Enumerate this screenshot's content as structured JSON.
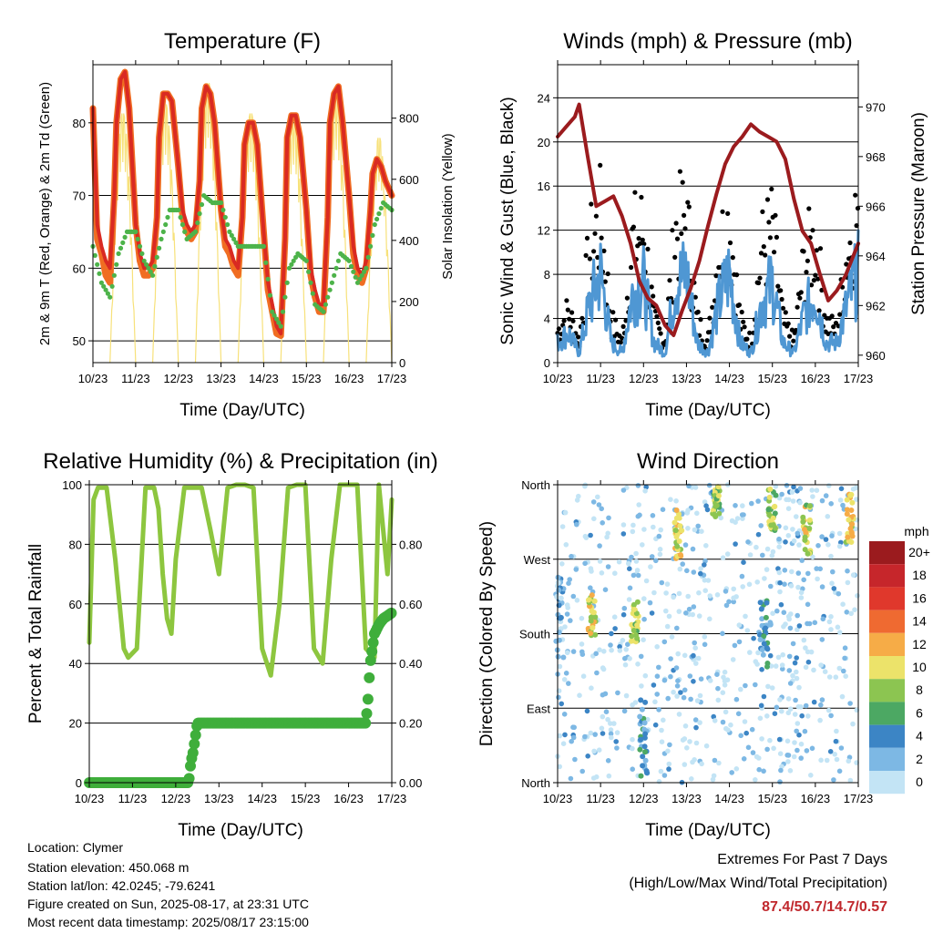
{
  "colors": {
    "temp9m": "#d92a22",
    "temp2m": "#f06d22",
    "dewpoint": "#4db34a",
    "solar": "#f7e17a",
    "sonic": "#4f97d3",
    "gust": "#000000",
    "pressure": "#9b1b1e",
    "rh": "#8dc63f",
    "precip": "#3fae3b",
    "highlight": "#c0282d"
  },
  "footer": {
    "location": "Location: Clymer",
    "elevation": "Station elevation: 450.068 m",
    "latlon": "Station lat/lon: 42.0245; -79.6241",
    "created": "Figure created on Sun, 2025-08-17, at 23:31 UTC",
    "recent": "Most recent data timestamp: 2025/08/17 23:15:00",
    "extremes_title": "Extremes For Past 7 Days",
    "extremes_sub": "(High/Low/Max Wind/Total Precipitation)",
    "extremes_values": "87.4/50.7/14.7/0.57"
  },
  "chart_data": [
    {
      "type": "line",
      "title": "Temperature (F)",
      "xlabel": "Time (Day/UTC)",
      "ylabel": "2m & 9m T (Red, Orange) & 2m Td (Green)",
      "ylabel_right": "Solar Insolation (Yellow)",
      "xticks": [
        "10/23",
        "11/23",
        "12/23",
        "13/23",
        "14/23",
        "15/23",
        "16/23",
        "17/23"
      ],
      "ylim": [
        47,
        88
      ],
      "yticks": [
        50,
        60,
        70,
        80
      ],
      "ylim_right": [
        0,
        975
      ],
      "yticks_right": [
        0,
        200,
        400,
        600,
        800
      ],
      "grid": "horizontal",
      "series": [
        {
          "name": "9m T",
          "axis": "left",
          "x": [
            0,
            0.1,
            0.2,
            0.3,
            0.4,
            0.5,
            0.55,
            0.65,
            0.75,
            0.85,
            1,
            1.1,
            1.2,
            1.3,
            1.4,
            1.5,
            1.55,
            1.65,
            1.75,
            1.85,
            2,
            2.1,
            2.2,
            2.3,
            2.4,
            2.5,
            2.55,
            2.65,
            2.75,
            2.85,
            3,
            3.1,
            3.2,
            3.3,
            3.4,
            3.5,
            3.55,
            3.65,
            3.75,
            3.85,
            4,
            4.1,
            4.2,
            4.3,
            4.4,
            4.5,
            4.55,
            4.65,
            4.75,
            4.85,
            5,
            5.1,
            5.2,
            5.3,
            5.4,
            5.5,
            5.55,
            5.65,
            5.75,
            5.85,
            6,
            6.1,
            6.2,
            6.3,
            6.4,
            6.5,
            6.55,
            6.65,
            6.75,
            6.85,
            7
          ],
          "values": [
            82,
            66,
            63,
            61,
            60,
            70,
            80,
            86,
            87,
            82,
            66,
            62,
            60,
            60,
            61,
            67,
            78,
            84,
            84,
            83,
            74,
            68,
            66,
            65,
            66,
            72,
            82,
            85,
            84,
            80,
            68,
            64,
            63,
            61,
            60,
            67,
            77,
            80,
            80,
            77,
            65,
            58,
            55,
            52,
            51,
            64,
            78,
            81,
            81,
            78,
            68,
            60,
            57,
            55,
            55,
            67,
            80,
            84,
            85,
            80,
            70,
            63,
            60,
            59,
            61,
            68,
            73,
            75,
            74,
            72,
            70
          ]
        },
        {
          "name": "2m T",
          "axis": "left",
          "x": [
            0,
            0.1,
            0.2,
            0.3,
            0.4,
            0.5,
            0.55,
            0.65,
            0.75,
            0.85,
            1,
            1.1,
            1.2,
            1.3,
            1.4,
            1.5,
            1.55,
            1.65,
            1.75,
            1.85,
            2,
            2.1,
            2.2,
            2.3,
            2.4,
            2.5,
            2.55,
            2.65,
            2.75,
            2.85,
            3,
            3.1,
            3.2,
            3.3,
            3.4,
            3.5,
            3.55,
            3.65,
            3.75,
            3.85,
            4,
            4.1,
            4.2,
            4.3,
            4.4,
            4.5,
            4.55,
            4.65,
            4.75,
            4.85,
            5,
            5.1,
            5.2,
            5.3,
            5.4,
            5.5,
            5.55,
            5.65,
            5.75,
            5.85,
            6,
            6.1,
            6.2,
            6.3,
            6.4,
            6.5,
            6.55,
            6.65,
            6.75,
            6.85,
            7
          ],
          "values": [
            82,
            64,
            62,
            59,
            58,
            70,
            80,
            86,
            87,
            82,
            66,
            61,
            59,
            59,
            60,
            67,
            78,
            84,
            84,
            83,
            74,
            67,
            65,
            64,
            65,
            72,
            82,
            85,
            84,
            80,
            68,
            63,
            62,
            60,
            59,
            67,
            77,
            80,
            80,
            77,
            65,
            57,
            54,
            51,
            50.7,
            64,
            78,
            81,
            81,
            78,
            68,
            59,
            56,
            54,
            54,
            67,
            80,
            84,
            85,
            80,
            70,
            62,
            59,
            58,
            60,
            68,
            73,
            75,
            74,
            72,
            70
          ]
        },
        {
          "name": "2m Td",
          "axis": "left",
          "x": [
            0,
            0.2,
            0.4,
            0.6,
            0.8,
            1,
            1.2,
            1.4,
            1.6,
            1.8,
            2,
            2.2,
            2.4,
            2.6,
            2.8,
            3,
            3.2,
            3.4,
            3.6,
            3.8,
            4,
            4.2,
            4.4,
            4.6,
            4.8,
            5,
            5.2,
            5.4,
            5.6,
            5.8,
            6,
            6.2,
            6.4,
            6.6,
            6.8,
            7
          ],
          "values": [
            63,
            58,
            56,
            62,
            65,
            65,
            61,
            59,
            64,
            68,
            68,
            64,
            65,
            70,
            69,
            69,
            65,
            63,
            63,
            63,
            63,
            54,
            52,
            60,
            62,
            61,
            55,
            54,
            58,
            62,
            61,
            58,
            60,
            66,
            69,
            68
          ]
        },
        {
          "name": "Solar Insolation",
          "axis": "right",
          "peaks": [
            [
              0.7,
              820
            ],
            [
              1.7,
              850
            ],
            [
              2.7,
              920
            ],
            [
              3.7,
              820
            ],
            [
              4.7,
              810
            ],
            [
              5.7,
              870
            ],
            [
              6.7,
              740
            ]
          ]
        }
      ]
    },
    {
      "type": "line",
      "title": "Winds (mph) & Pressure (mb)",
      "xlabel": "Time (Day/UTC)",
      "ylabel": "Sonic Wind & Gust (Blue, Black)",
      "ylabel_right": "Station Pressure (Maroon)",
      "xticks": [
        "10/23",
        "11/23",
        "12/23",
        "13/23",
        "14/23",
        "15/23",
        "16/23",
        "17/23"
      ],
      "ylim": [
        0,
        27
      ],
      "yticks": [
        0,
        4,
        8,
        12,
        16,
        20,
        24
      ],
      "ylim_right": [
        959.7,
        971.7
      ],
      "yticks_right": [
        960,
        962,
        964,
        966,
        968,
        970
      ],
      "grid": "horizontal",
      "series": [
        {
          "name": "Station Pressure",
          "axis": "right",
          "x": [
            0,
            0.2,
            0.4,
            0.5,
            0.7,
            0.9,
            1.1,
            1.3,
            1.5,
            1.7,
            1.9,
            2.1,
            2.3,
            2.5,
            2.7,
            2.9,
            3.1,
            3.3,
            3.5,
            3.7,
            3.9,
            4.1,
            4.3,
            4.5,
            4.7,
            4.9,
            5.1,
            5.3,
            5.5,
            5.7,
            5.9,
            6.1,
            6.3,
            6.5,
            6.7,
            7
          ],
          "values": [
            968.8,
            969.2,
            969.6,
            970.1,
            968.0,
            966.0,
            966.2,
            966.4,
            965.6,
            964.5,
            963.0,
            962.3,
            962.0,
            961.2,
            960.8,
            961.8,
            962.7,
            963.8,
            965.2,
            966.5,
            967.7,
            968.4,
            968.8,
            969.3,
            969.0,
            968.8,
            968.6,
            967.9,
            966.3,
            965.0,
            964.5,
            963.3,
            962.2,
            962.6,
            963.2,
            964.5
          ]
        },
        {
          "name": "Sonic Wind",
          "axis": "left",
          "x": [
            0,
            0.25,
            0.5,
            0.75,
            1,
            1.25,
            1.5,
            1.75,
            2,
            2.25,
            2.5,
            2.75,
            3,
            3.25,
            3.5,
            3.75,
            4,
            4.25,
            4.5,
            4.75,
            5,
            5.25,
            5.5,
            5.75,
            6,
            6.25,
            6.5,
            6.75,
            7
          ],
          "values": [
            2,
            3,
            1,
            6,
            9,
            2,
            1,
            7,
            8,
            2,
            1,
            8,
            9,
            2,
            1,
            6,
            9,
            2,
            1,
            6,
            8,
            2,
            1,
            5,
            7,
            2,
            2,
            6,
            9
          ]
        },
        {
          "name": "Gust",
          "axis": "left",
          "x": [
            0,
            0.25,
            0.5,
            0.75,
            1,
            1.25,
            1.5,
            1.75,
            2,
            2.25,
            2.5,
            2.75,
            3,
            3.25,
            3.5,
            3.75,
            4,
            4.25,
            4.5,
            4.75,
            5,
            5.25,
            5.5,
            5.75,
            6,
            6.25,
            6.5,
            6.75,
            7
          ],
          "values": [
            3,
            5,
            2,
            11,
            14,
            4,
            2,
            12,
            13,
            4,
            2,
            13,
            14,
            4,
            2,
            11,
            14,
            4,
            2,
            11,
            13,
            4,
            2,
            10,
            12,
            4,
            3,
            11,
            15
          ]
        }
      ]
    },
    {
      "type": "line",
      "title": "Relative Humidity (%) & Precipitation (in)",
      "xlabel": "Time (Day/UTC)",
      "ylabel": "Percent & Total Rainfall",
      "xticks": [
        "10/23",
        "11/23",
        "12/23",
        "13/23",
        "14/23",
        "15/23",
        "16/23",
        "17/23"
      ],
      "ylim": [
        0,
        100
      ],
      "yticks": [
        0,
        20,
        40,
        60,
        80,
        100
      ],
      "ylim_right": [
        0,
        1
      ],
      "yticks_right": [
        "0.00",
        "0.20",
        "0.40",
        "0.60",
        "0.80"
      ],
      "grid": "horizontal",
      "series": [
        {
          "name": "Relative Humidity",
          "axis": "left",
          "x": [
            0,
            0.1,
            0.2,
            0.4,
            0.6,
            0.8,
            0.9,
            1.1,
            1.3,
            1.5,
            1.6,
            1.7,
            1.8,
            1.9,
            2.0,
            2.2,
            2.4,
            2.6,
            2.8,
            3.0,
            3.2,
            3.4,
            3.6,
            3.8,
            4.0,
            4.2,
            4.4,
            4.6,
            4.8,
            5.0,
            5.2,
            5.4,
            5.6,
            5.8,
            6.0,
            6.2,
            6.4,
            6.6,
            6.7,
            6.8,
            6.9,
            7.0
          ],
          "values": [
            47,
            95,
            99,
            99,
            75,
            45,
            42,
            45,
            99,
            99,
            92,
            70,
            55,
            50,
            75,
            99,
            99,
            99,
            85,
            70,
            99,
            100,
            100,
            99,
            45,
            36,
            60,
            99,
            100,
            100,
            45,
            40,
            75,
            100,
            100,
            100,
            45,
            42,
            100,
            85,
            70,
            95
          ]
        },
        {
          "name": "Total Precipitation",
          "axis": "right",
          "x": [
            0,
            1,
            2.3,
            2.35,
            2.4,
            2.45,
            2.5,
            3,
            4,
            5,
            6,
            6.4,
            6.45,
            6.5,
            6.55,
            6.6,
            6.7,
            6.8,
            7
          ],
          "values": [
            0,
            0,
            0,
            0.07,
            0.1,
            0.15,
            0.2,
            0.2,
            0.2,
            0.2,
            0.2,
            0.2,
            0.28,
            0.4,
            0.45,
            0.5,
            0.53,
            0.55,
            0.57
          ]
        }
      ]
    },
    {
      "type": "scatter",
      "title": "Wind Direction",
      "xlabel": "Time (Day/UTC)",
      "ylabel": "Direction (Colored By Speed)",
      "xticks": [
        "10/23",
        "11/23",
        "12/23",
        "13/23",
        "14/23",
        "15/23",
        "16/23",
        "17/23"
      ],
      "yticks": [
        "North",
        "East",
        "South",
        "West",
        "North"
      ],
      "ylim": [
        0,
        360
      ],
      "legend": {
        "title": "mph",
        "labels": [
          "20+",
          "18",
          "16",
          "14",
          "12",
          "10",
          "8",
          "6",
          "4",
          "2",
          "0"
        ],
        "colors": [
          "#9b1b1e",
          "#c6262b",
          "#e0382c",
          "#ef6a31",
          "#f6ac47",
          "#ece36a",
          "#8cc551",
          "#4ca863",
          "#3c85c5",
          "#7db8e4",
          "#c3e4f5"
        ],
        "placement": "right"
      },
      "grid": "horizontal",
      "clusters": [
        {
          "day": 0.05,
          "dir_low": 150,
          "dir_high": 250,
          "speed": 2
        },
        {
          "day": 0.8,
          "dir_low": 170,
          "dir_high": 230,
          "speed": 10
        },
        {
          "day": 1.8,
          "dir_low": 170,
          "dir_high": 220,
          "speed": 8
        },
        {
          "day": 2.0,
          "dir_low": 0,
          "dir_high": 100,
          "speed": 4
        },
        {
          "day": 2.8,
          "dir_low": 270,
          "dir_high": 330,
          "speed": 10
        },
        {
          "day": 3.7,
          "dir_low": 320,
          "dir_high": 360,
          "speed": 8
        },
        {
          "day": 4.8,
          "dir_low": 140,
          "dir_high": 220,
          "speed": 4
        },
        {
          "day": 5.0,
          "dir_low": 300,
          "dir_high": 355,
          "speed": 8
        },
        {
          "day": 5.8,
          "dir_low": 270,
          "dir_high": 340,
          "speed": 9
        },
        {
          "day": 6.8,
          "dir_low": 290,
          "dir_high": 350,
          "speed": 10
        }
      ]
    }
  ]
}
